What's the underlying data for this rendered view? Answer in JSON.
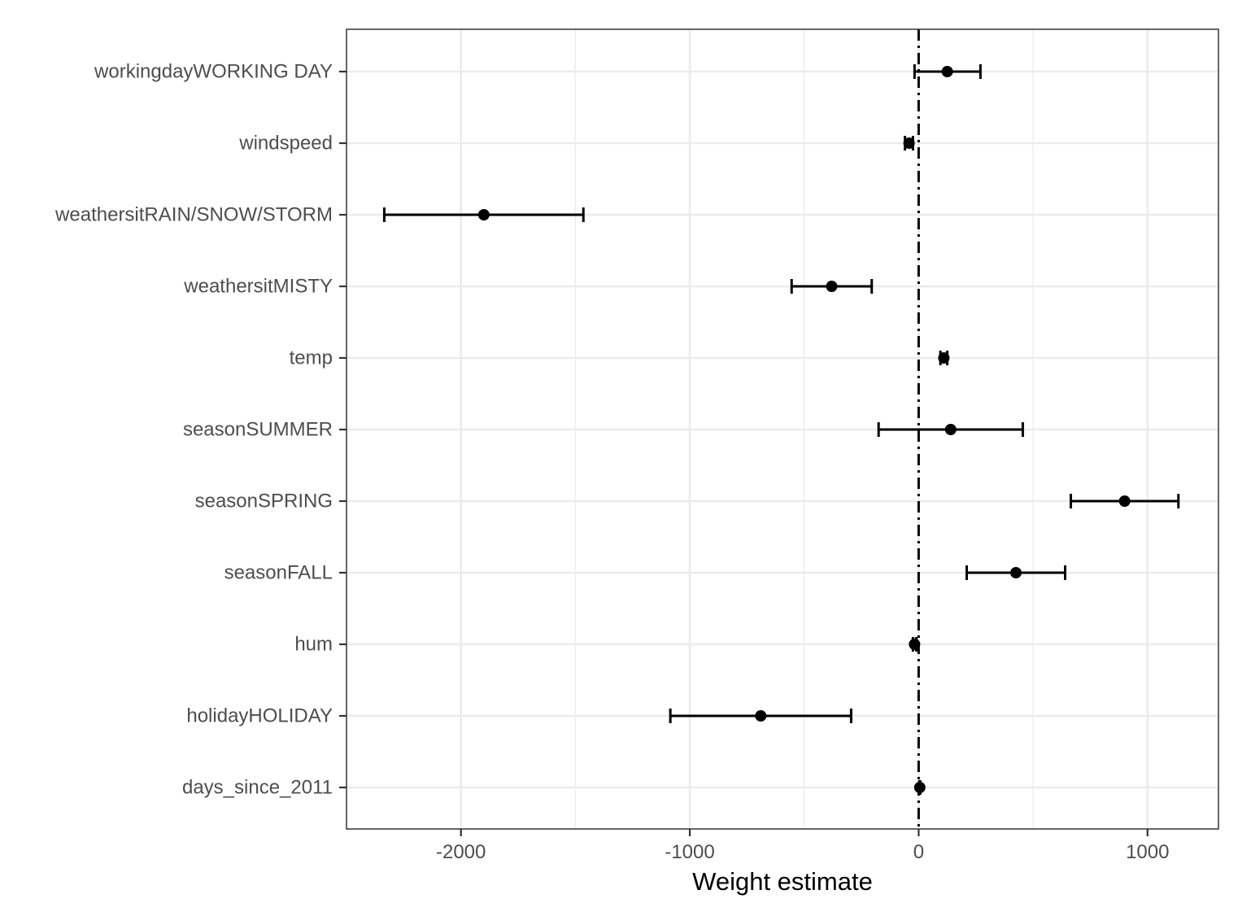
{
  "chart_data": {
    "type": "scatter",
    "title": "",
    "xlabel": "Weight estimate",
    "ylabel": "",
    "xlim": [
      -2500,
      1310
    ],
    "xticks": [
      -2000,
      -1000,
      0,
      1000
    ],
    "xtick_labels": [
      "-2000",
      "-1000",
      "0",
      "1000"
    ],
    "grid": true,
    "legend": "none",
    "reference_line": {
      "x": 0,
      "style": "dot-dash"
    },
    "categories": [
      "workingdayWORKING DAY",
      "windspeed",
      "weathersitRAIN/SNOW/STORM",
      "weathersitMISTY",
      "temp",
      "seasonSUMMER",
      "seasonSPRING",
      "seasonFALL",
      "hum",
      "holidayHOLIDAY",
      "days_since_2011"
    ],
    "series": [
      {
        "estimate": [
          125,
          -42,
          -1900,
          -380,
          110,
          140,
          900,
          425,
          -18,
          -690,
          5
        ],
        "lower": [
          -18,
          -60,
          -2335,
          -555,
          95,
          -175,
          665,
          210,
          -25,
          -1085,
          3
        ],
        "upper": [
          270,
          -25,
          -1465,
          -205,
          125,
          455,
          1135,
          640,
          -10,
          -295,
          7
        ]
      }
    ],
    "colors": {
      "marks": "#000000",
      "grid": "#ebebeb",
      "panel_border": "#333333",
      "tick_text": "#4d4d4d"
    }
  }
}
